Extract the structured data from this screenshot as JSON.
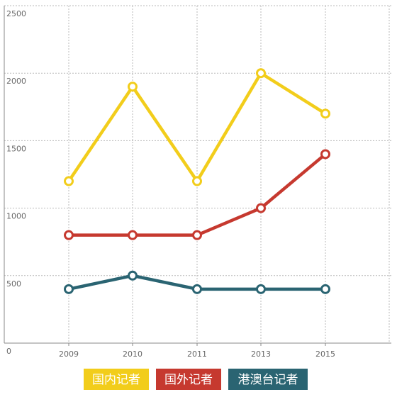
{
  "chart_data": {
    "type": "line",
    "title": "",
    "xlabel": "",
    "ylabel": "",
    "x": [
      "2009",
      "2010",
      "2011",
      "2013",
      "2015"
    ],
    "ylim": [
      0,
      2500
    ],
    "yticks": [
      "0",
      "500",
      "1000",
      "1500",
      "2000",
      "2500"
    ],
    "grid": true,
    "legend_position": "bottom",
    "series": [
      {
        "name": "国内记者",
        "color": "#f2cd1b",
        "values": [
          1200,
          1900,
          1200,
          2000,
          1700
        ]
      },
      {
        "name": "国外记者",
        "color": "#c6392f",
        "values": [
          800,
          800,
          800,
          1000,
          1400
        ]
      },
      {
        "name": "港澳台记者",
        "color": "#2a6472",
        "values": [
          400,
          500,
          400,
          400,
          400
        ]
      }
    ]
  }
}
